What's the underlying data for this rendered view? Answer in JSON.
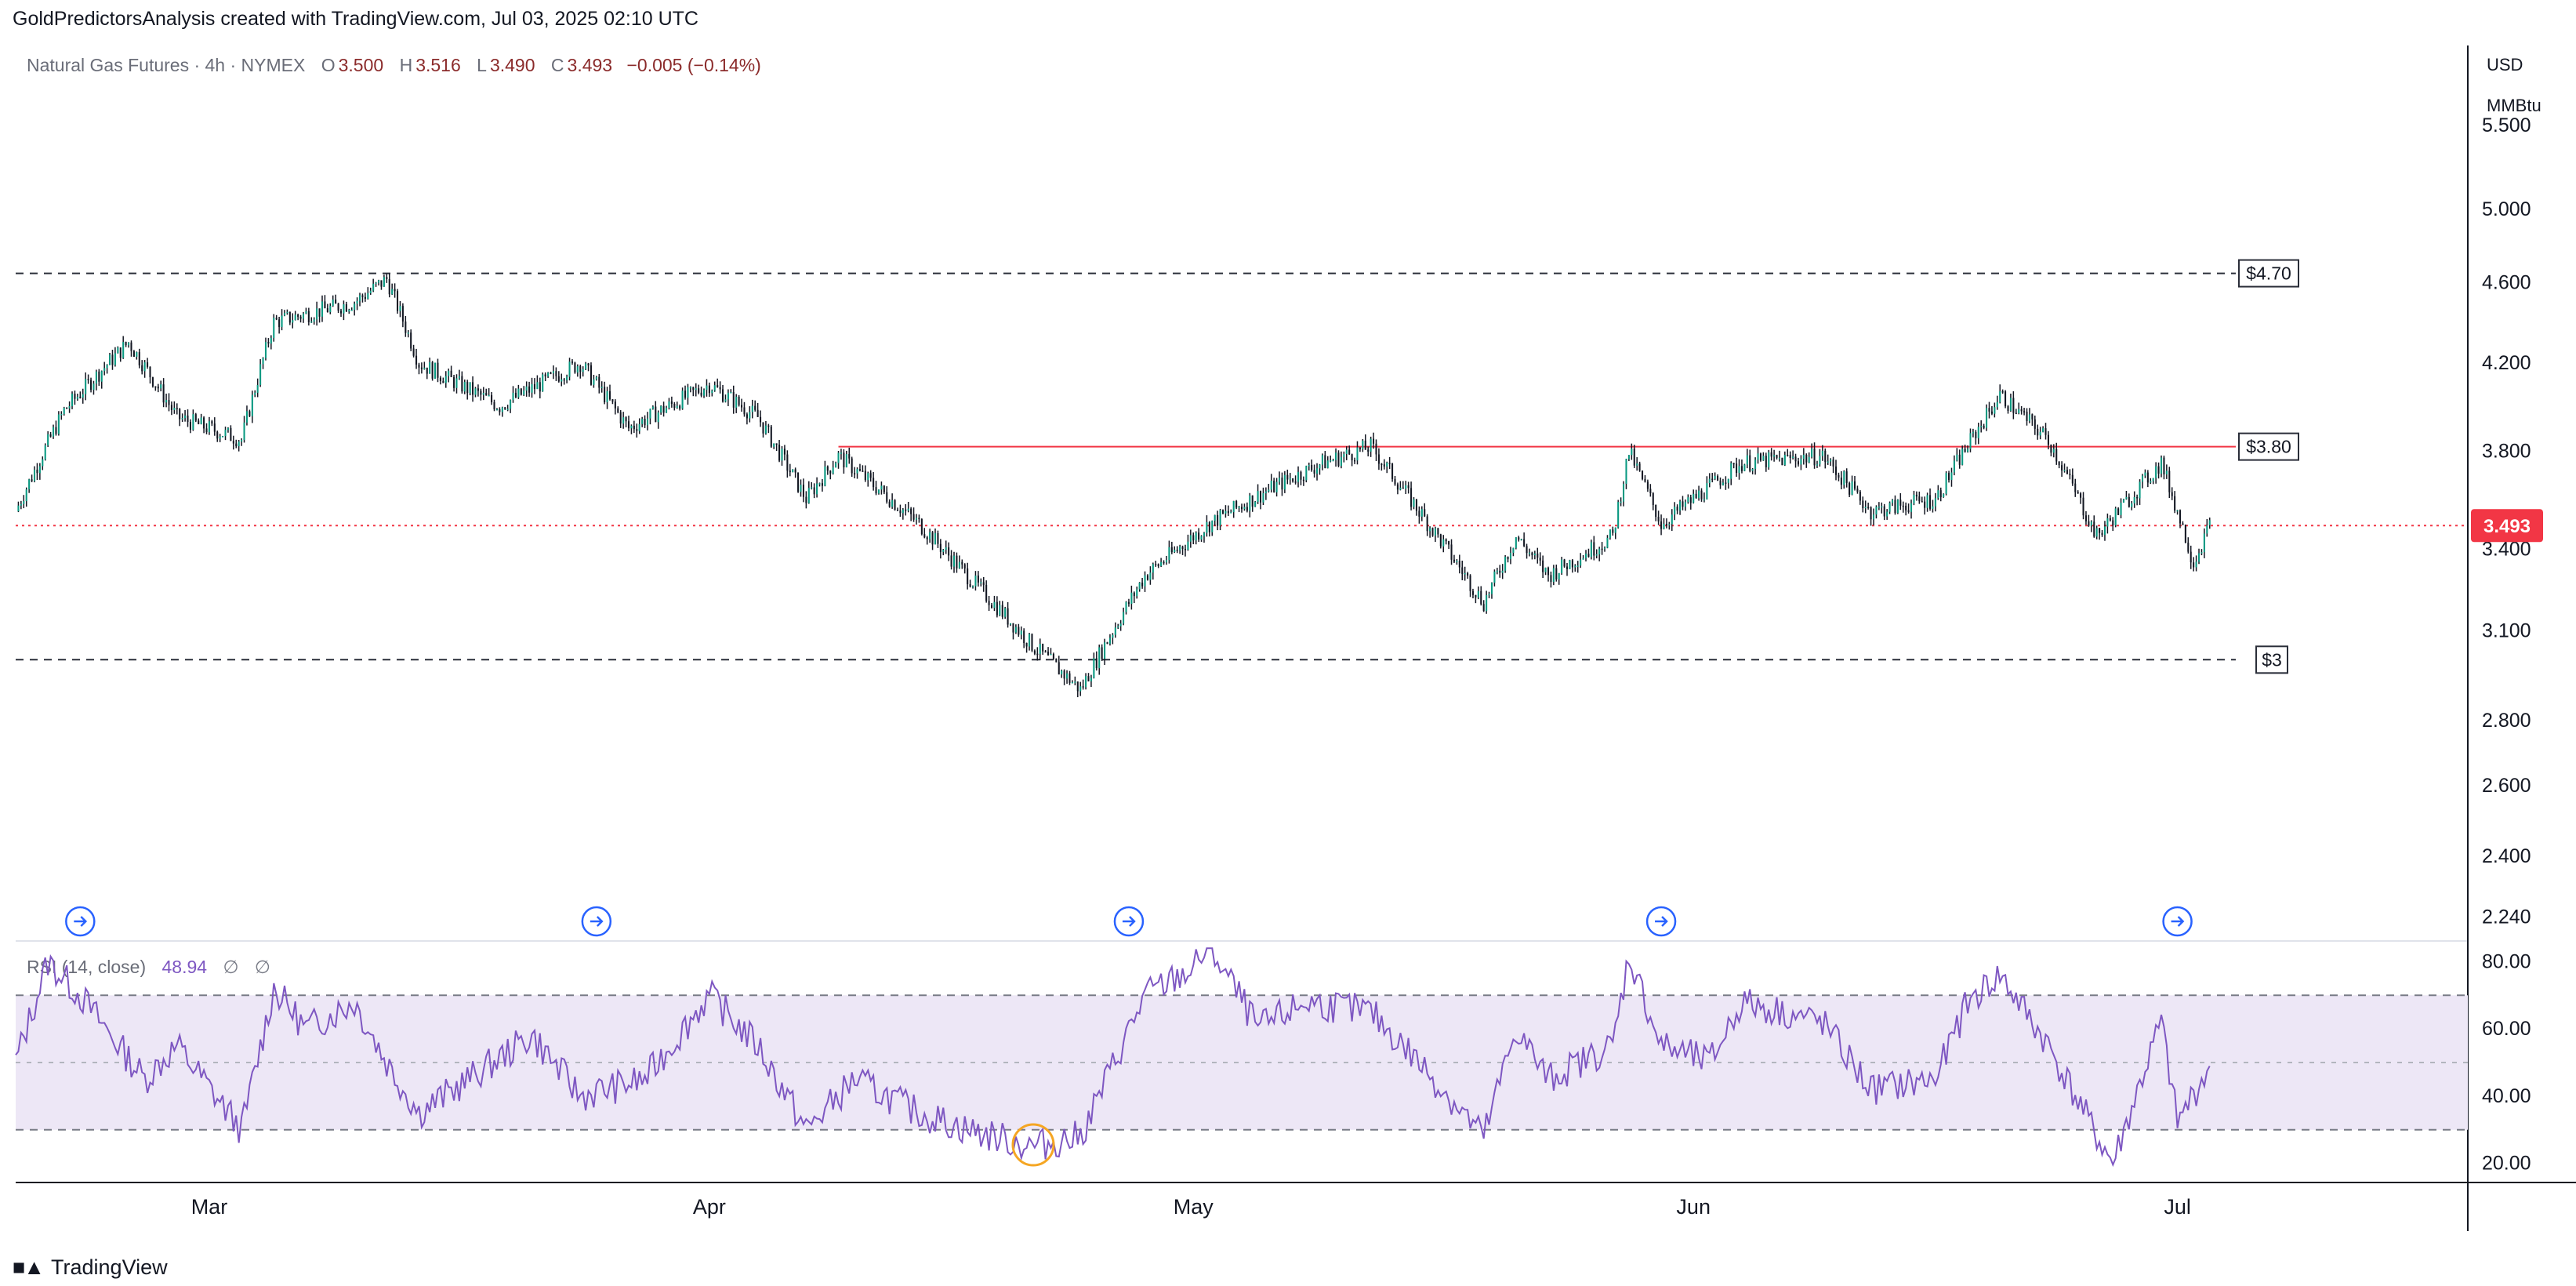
{
  "attribution": "GoldPredictorsAnalysis created with TradingView.com, Jul 03, 2025 02:10 UTC",
  "legend": {
    "symbol": "Natural Gas Futures · 4h · NYMEX",
    "open_label": "O",
    "open": "3.500",
    "high_label": "H",
    "high": "3.516",
    "low_label": "L",
    "low": "3.490",
    "close_label": "C",
    "close": "3.493",
    "change": "−0.005 (−0.14%)"
  },
  "price_axis": {
    "currency": "USD",
    "unit": "MMBtu",
    "ticks": [
      "5.500",
      "5.000",
      "4.600",
      "4.200",
      "3.800",
      "3.400",
      "3.100",
      "2.800",
      "2.600",
      "2.400",
      "2.240"
    ],
    "last_price_label": "3.493",
    "last_price_color": "#f23645"
  },
  "rsi": {
    "title": "RSI (14, close)",
    "value": "48.94",
    "extra1": "∅",
    "extra2": "∅",
    "ticks": [
      "80.00",
      "60.00",
      "40.00",
      "20.00"
    ],
    "upper": 70,
    "middle": 50,
    "lower": 30,
    "line_color": "#7e57c2",
    "band_color": "#ede7f6"
  },
  "time_axis": [
    "Mar",
    "Apr",
    "May",
    "Jun",
    "Jul"
  ],
  "annotations": {
    "level_high": "$4.70",
    "level_resistance": "$3.80",
    "level_low": "$3"
  },
  "footer": {
    "brand": "TradingView"
  },
  "chart_data": [
    {
      "type": "candlestick",
      "title": "Natural Gas Futures · 4h · NYMEX",
      "y_scale": "log",
      "ylim": [
        2.2,
        6.0
      ],
      "x_range": [
        "2025-02-17",
        "2025-07-03"
      ],
      "horizontal_levels": [
        {
          "label": "$4.70",
          "value": 4.65,
          "style": "dashed"
        },
        {
          "label": "$3.80",
          "value": 3.82,
          "style": "solid",
          "color": "#f23645",
          "from": "2025-04-09"
        },
        {
          "label": "$3",
          "value": 3.0,
          "style": "dashed"
        },
        {
          "value": 3.493,
          "style": "dotted",
          "color": "#f23645"
        }
      ],
      "close_path": [
        {
          "date": "2025-02-17",
          "close": 3.55
        },
        {
          "date": "2025-02-20",
          "close": 3.98
        },
        {
          "date": "2025-02-24",
          "close": 4.3
        },
        {
          "date": "2025-02-27",
          "close": 3.95
        },
        {
          "date": "2025-03-03",
          "close": 3.85
        },
        {
          "date": "2025-03-05",
          "close": 4.4
        },
        {
          "date": "2025-03-10",
          "close": 4.5
        },
        {
          "date": "2025-03-12",
          "close": 4.62
        },
        {
          "date": "2025-03-14",
          "close": 4.2
        },
        {
          "date": "2025-03-19",
          "close": 4.0
        },
        {
          "date": "2025-03-24",
          "close": 4.2
        },
        {
          "date": "2025-03-27",
          "close": 3.9
        },
        {
          "date": "2025-04-01",
          "close": 4.1
        },
        {
          "date": "2025-04-04",
          "close": 3.95
        },
        {
          "date": "2025-04-07",
          "close": 3.6
        },
        {
          "date": "2025-04-09",
          "close": 3.78
        },
        {
          "date": "2025-04-14",
          "close": 3.5
        },
        {
          "date": "2025-04-17",
          "close": 3.3
        },
        {
          "date": "2025-04-21",
          "close": 3.05
        },
        {
          "date": "2025-04-24",
          "close": 2.9
        },
        {
          "date": "2025-04-28",
          "close": 3.3
        },
        {
          "date": "2025-05-02",
          "close": 3.5
        },
        {
          "date": "2025-05-06",
          "close": 3.65
        },
        {
          "date": "2025-05-09",
          "close": 3.75
        },
        {
          "date": "2025-05-12",
          "close": 3.82
        },
        {
          "date": "2025-05-15",
          "close": 3.55
        },
        {
          "date": "2025-05-19",
          "close": 3.2
        },
        {
          "date": "2025-05-21",
          "close": 3.45
        },
        {
          "date": "2025-05-23",
          "close": 3.3
        },
        {
          "date": "2025-05-27",
          "close": 3.45
        },
        {
          "date": "2025-05-28",
          "close": 3.8
        },
        {
          "date": "2025-05-30",
          "close": 3.5
        },
        {
          "date": "2025-06-04",
          "close": 3.75
        },
        {
          "date": "2025-06-09",
          "close": 3.78
        },
        {
          "date": "2025-06-12",
          "close": 3.55
        },
        {
          "date": "2025-06-16",
          "close": 3.6
        },
        {
          "date": "2025-06-20",
          "close": 4.05
        },
        {
          "date": "2025-06-23",
          "close": 3.85
        },
        {
          "date": "2025-06-26",
          "close": 3.45
        },
        {
          "date": "2025-06-30",
          "close": 3.75
        },
        {
          "date": "2025-07-02",
          "close": 3.35
        },
        {
          "date": "2025-07-03",
          "close": 3.493
        }
      ]
    },
    {
      "type": "line",
      "title": "RSI (14, close)",
      "ylim": [
        15,
        85
      ],
      "bands": [
        70,
        50,
        30
      ],
      "series": [
        {
          "name": "RSI",
          "points": [
            {
              "date": "2025-02-17",
              "v": 50
            },
            {
              "date": "2025-02-19",
              "v": 80
            },
            {
              "date": "2025-02-21",
              "v": 70
            },
            {
              "date": "2025-02-25",
              "v": 45
            },
            {
              "date": "2025-02-27",
              "v": 55
            },
            {
              "date": "2025-03-03",
              "v": 30
            },
            {
              "date": "2025-03-05",
              "v": 72
            },
            {
              "date": "2025-03-07",
              "v": 60
            },
            {
              "date": "2025-03-10",
              "v": 68
            },
            {
              "date": "2025-03-12",
              "v": 50
            },
            {
              "date": "2025-03-14",
              "v": 35
            },
            {
              "date": "2025-03-18",
              "v": 48
            },
            {
              "date": "2025-03-21",
              "v": 58
            },
            {
              "date": "2025-03-24",
              "v": 40
            },
            {
              "date": "2025-03-28",
              "v": 45
            },
            {
              "date": "2025-04-01",
              "v": 70
            },
            {
              "date": "2025-04-04",
              "v": 55
            },
            {
              "date": "2025-04-07",
              "v": 30
            },
            {
              "date": "2025-04-10",
              "v": 45
            },
            {
              "date": "2025-04-14",
              "v": 35
            },
            {
              "date": "2025-04-17",
              "v": 30
            },
            {
              "date": "2025-04-21",
              "v": 25
            },
            {
              "date": "2025-04-24",
              "v": 28
            },
            {
              "date": "2025-04-28",
              "v": 70
            },
            {
              "date": "2025-05-01",
              "v": 78
            },
            {
              "date": "2025-05-02",
              "v": 85
            },
            {
              "date": "2025-05-05",
              "v": 60
            },
            {
              "date": "2025-05-08",
              "v": 68
            },
            {
              "date": "2025-05-12",
              "v": 65
            },
            {
              "date": "2025-05-15",
              "v": 50
            },
            {
              "date": "2025-05-19",
              "v": 28
            },
            {
              "date": "2025-05-21",
              "v": 60
            },
            {
              "date": "2025-05-23",
              "v": 45
            },
            {
              "date": "2025-05-27",
              "v": 55
            },
            {
              "date": "2025-05-28",
              "v": 82
            },
            {
              "date": "2025-05-30",
              "v": 55
            },
            {
              "date": "2025-06-02",
              "v": 50
            },
            {
              "date": "2025-06-04",
              "v": 68
            },
            {
              "date": "2025-06-09",
              "v": 62
            },
            {
              "date": "2025-06-12",
              "v": 42
            },
            {
              "date": "2025-06-16",
              "v": 45
            },
            {
              "date": "2025-06-18",
              "v": 68
            },
            {
              "date": "2025-06-20",
              "v": 76
            },
            {
              "date": "2025-06-23",
              "v": 55
            },
            {
              "date": "2025-06-26",
              "v": 28
            },
            {
              "date": "2025-06-27",
              "v": 20
            },
            {
              "date": "2025-06-30",
              "v": 62
            },
            {
              "date": "2025-07-01",
              "v": 32
            },
            {
              "date": "2025-07-03",
              "v": 48.94
            }
          ]
        }
      ]
    }
  ]
}
